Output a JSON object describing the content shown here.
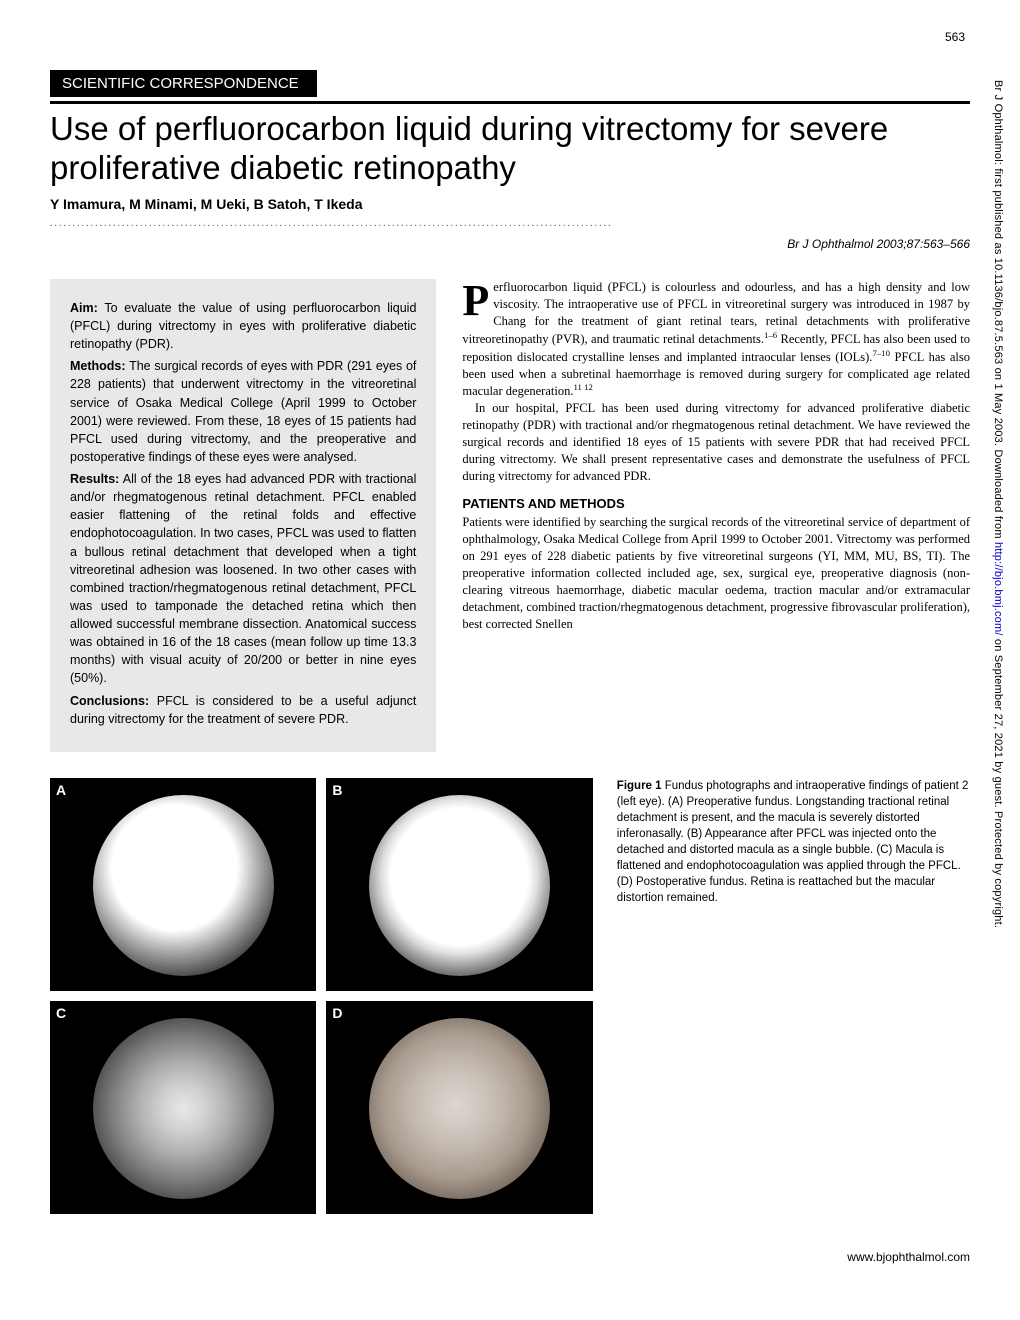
{
  "page_number": "563",
  "section_label": "SCIENTIFIC CORRESPONDENCE",
  "title": "Use of perfluorocarbon liquid during vitrectomy for severe proliferative diabetic retinopathy",
  "authors": "Y Imamura, M Minami, M Ueki, B Satoh, T Ikeda",
  "citation_journal": "Br J Ophthalmol",
  "citation_detail": " 2003;87:563–566",
  "abstract": {
    "aim_label": "Aim:",
    "aim_text": " To evaluate the value of using perfluorocarbon liquid (PFCL) during vitrectomy in eyes with proliferative diabetic retinopathy (PDR).",
    "methods_label": "Methods:",
    "methods_text": " The surgical records of eyes with PDR (291 eyes of 228 patients) that underwent vitrectomy in the vitreoretinal service of Osaka Medical College (April 1999 to October 2001) were reviewed. From these, 18 eyes of 15 patients had PFCL used during vitrectomy, and the preoperative and postoperative findings of these eyes were analysed.",
    "results_label": "Results:",
    "results_text": " All of the 18 eyes had advanced PDR with tractional and/or rhegmatogenous retinal detachment. PFCL enabled easier flattening of the retinal folds and effective endophotocoagulation. In two cases, PFCL was used to flatten a bullous retinal detachment that developed when a tight vitreoretinal adhesion was loosened. In two other cases with combined traction/rhegmatogenous retinal detachment, PFCL was used to tamponade the detached retina which then allowed successful membrane dissection. Anatomical success was obtained in 16 of the 18 cases (mean follow up time 13.3 months) with visual acuity of 20/200 or better in nine eyes (50%).",
    "conclusions_label": "Conclusions:",
    "conclusions_text": " PFCL is considered to be a useful adjunct during vitrectomy for the treatment of severe PDR."
  },
  "body": {
    "dropcap": "P",
    "p1_rest": "erfluorocarbon liquid (PFCL) is colourless and odourless, and has a high density and low viscosity. The intraoperative use of PFCL in vitreoretinal surgery was introduced in 1987 by Chang for the treatment of giant retinal tears, retinal detachments with proliferative vitreoretinopathy (PVR), and traumatic retinal detachments.",
    "sup1": "1–6",
    "p1_cont": " Recently, PFCL has also been used to reposition dislocated crystalline lenses and implanted intraocular lenses (IOLs).",
    "sup2": "7–10",
    "p1_cont2": " PFCL has also been used when a subretinal haemorrhage is removed during surgery for complicated age related macular degeneration.",
    "sup3": "11 12",
    "p2": "In our hospital, PFCL has been used during vitrectomy for advanced proliferative diabetic retinopathy (PDR) with tractional and/or rhegmatogenous retinal detachment. We have reviewed the surgical records and identified 18 eyes of 15 patients with severe PDR that had received PFCL during vitrectomy. We shall present representative cases and demonstrate the usefulness of PFCL during vitrectomy for advanced PDR.",
    "methods_heading": "PATIENTS AND METHODS",
    "p3": "Patients were identified by searching the surgical records of the vitreoretinal service of department of ophthalmology, Osaka Medical College from April 1999 to October 2001. Vitrectomy was performed on 291 eyes of 228 diabetic patients by five vitreoretinal surgeons (YI, MM, MU, BS, TI). The preoperative information collected included age, sex, surgical eye, preoperative diagnosis (non-clearing vitreous haemorrhage, diabetic macular oedema, traction macular and/or extramacular detachment, combined traction/rhegmatogenous detachment, progressive fibrovascular proliferation), best corrected Snellen"
  },
  "figure": {
    "panels": [
      "A",
      "B",
      "C",
      "D"
    ],
    "caption_label": "Figure 1",
    "caption_text": "   Fundus photographs and intraoperative findings of patient 2 (left eye). (A) Preoperative fundus. Longstanding tractional retinal detachment is present, and the macula is severely distorted inferonasally. (B) Appearance after PFCL was injected onto the detached and distorted macula as a single bubble. (C) Macula is flattened and endophotocoagulation was applied through the PFCL. (D) Postoperative fundus. Retina is reattached but the macular distortion remained."
  },
  "footer_url": "www.bjophthalmol.com",
  "side_text_prefix": "Br J Ophthalmol: first published as 10.1136/bjo.87.5.563 on 1 May 2003. Downloaded from ",
  "side_link": "http://bjo.bmj.com/",
  "side_text_suffix": " on September 27, 2021 by guest. Protected by copyright."
}
